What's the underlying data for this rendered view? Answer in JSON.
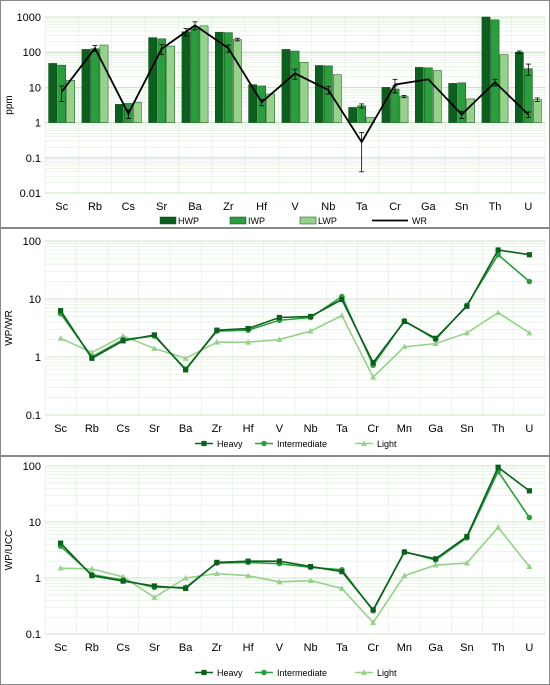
{
  "colors": {
    "dark": "#0d5f1e",
    "mid": "#2b9d3e",
    "light": "#96d28a",
    "lighter": "#d8efd2",
    "wr": "#000000",
    "grid": "#d7ecd3",
    "border": "#888888"
  },
  "chart_data": [
    {
      "type": "bar",
      "title": "",
      "xlabel": "",
      "ylabel": "ppm",
      "scale": "log",
      "ylim": [
        0.01,
        1000
      ],
      "yticks": [
        "0.01",
        "0.1",
        "1",
        "10",
        "100",
        "1000"
      ],
      "grid": true,
      "legend_position": "bottom",
      "categories": [
        "Sc",
        "Rb",
        "Cs",
        "Sr",
        "Ba",
        "Zr",
        "Hf",
        "V",
        "Nb",
        "Ta",
        "Cr",
        "Ga",
        "Sn",
        "Th",
        "U"
      ],
      "series": [
        {
          "name": "HWP",
          "kind": "bar",
          "color": "dark",
          "values": [
            48,
            120,
            3.3,
            260,
            380,
            370,
            12,
            120,
            42,
            2.7,
            10,
            37,
            13,
            1000,
            100
          ],
          "errors": [
            0,
            0,
            0,
            0,
            90,
            0,
            0,
            0,
            0,
            0,
            0,
            0,
            0,
            0,
            8
          ]
        },
        {
          "name": "IWP",
          "kind": "bar",
          "color": "mid",
          "values": [
            43,
            125,
            3.5,
            240,
            520,
            360,
            11,
            108,
            41,
            3.0,
            9,
            36,
            13.5,
            830,
            34
          ],
          "errors": [
            0,
            0,
            0,
            0,
            0,
            0,
            0,
            0,
            0,
            0.4,
            2,
            0,
            0,
            0,
            12
          ]
        },
        {
          "name": "LWP",
          "kind": "bar",
          "color": "light",
          "values": [
            16,
            160,
            3.8,
            150,
            560,
            230,
            6.5,
            52,
            23,
            1.4,
            5.5,
            30,
            4.7,
            85,
            4.5
          ],
          "errors": [
            0,
            0,
            0,
            0,
            0,
            20,
            0,
            0,
            0,
            0,
            0.4,
            0,
            0,
            0,
            0.5
          ]
        },
        {
          "name": "WR",
          "kind": "line",
          "color": "wr",
          "values": [
            7.5,
            130,
            1.8,
            125,
            580,
            130,
            3.8,
            25,
            8.5,
            0.28,
            12,
            17,
            1.7,
            14,
            1.7
          ],
          "errors": [
            3.5,
            25,
            0.5,
            40,
            150,
            30,
            0.8,
            8,
            2,
            0.24,
            5,
            0,
            0.4,
            3,
            0.3
          ]
        }
      ]
    },
    {
      "type": "line",
      "title": "",
      "xlabel": "",
      "ylabel": "WP/WR",
      "scale": "log",
      "ylim": [
        0.1,
        100
      ],
      "yticks": [
        "0.1",
        "1",
        "10",
        "100"
      ],
      "grid": true,
      "legend_position": "bottom",
      "categories": [
        "Sc",
        "Rb",
        "Cs",
        "Sr",
        "Ba",
        "Zr",
        "Hf",
        "V",
        "Nb",
        "Ta",
        "Cr",
        "Mn",
        "Ga",
        "Sn",
        "Th",
        "U"
      ],
      "series": [
        {
          "name": "Heavy",
          "marker": "square",
          "color": "dark",
          "values": [
            6.3,
            0.95,
            1.9,
            2.4,
            0.6,
            2.9,
            3.1,
            4.8,
            5.0,
            9.8,
            0.8,
            4.1,
            2.1,
            7.5,
            70,
            58
          ]
        },
        {
          "name": "Intermediate",
          "marker": "circle",
          "color": "mid",
          "values": [
            5.6,
            1.0,
            2.0,
            2.3,
            0.62,
            2.8,
            2.9,
            4.3,
            4.8,
            11,
            0.72,
            4.2,
            2.0,
            7.8,
            58,
            20
          ]
        },
        {
          "name": "Light",
          "marker": "triangle",
          "color": "light",
          "values": [
            2.1,
            1.2,
            2.3,
            1.4,
            0.95,
            1.8,
            1.8,
            2.0,
            2.8,
            5.2,
            0.45,
            1.5,
            1.7,
            2.6,
            5.8,
            2.6
          ]
        }
      ]
    },
    {
      "type": "line",
      "title": "",
      "xlabel": "",
      "ylabel": "WP/UCC",
      "scale": "log",
      "ylim": [
        0.1,
        100
      ],
      "yticks": [
        "0.1",
        "1",
        "10",
        "100"
      ],
      "grid": true,
      "legend_position": "bottom",
      "categories": [
        "Sc",
        "Rb",
        "Cs",
        "Sr",
        "Ba",
        "Zr",
        "Hf",
        "V",
        "Nb",
        "Ta",
        "Cr",
        "Mn",
        "Ga",
        "Sn",
        "Th",
        "U"
      ],
      "series": [
        {
          "name": "Heavy",
          "marker": "square",
          "color": "dark",
          "values": [
            4.2,
            1.1,
            0.88,
            0.72,
            0.65,
            1.9,
            2.0,
            2.0,
            1.6,
            1.3,
            0.27,
            2.9,
            2.2,
            5.5,
            95,
            36
          ]
        },
        {
          "name": "Intermediate",
          "marker": "circle",
          "color": "mid",
          "values": [
            3.7,
            1.15,
            0.92,
            0.68,
            0.68,
            1.85,
            1.9,
            1.8,
            1.55,
            1.4,
            0.26,
            2.95,
            2.1,
            5.2,
            80,
            12
          ]
        },
        {
          "name": "Light",
          "marker": "triangle",
          "color": "light",
          "values": [
            1.5,
            1.45,
            1.05,
            0.45,
            1.0,
            1.2,
            1.1,
            0.85,
            0.9,
            0.65,
            0.16,
            1.1,
            1.7,
            1.85,
            8,
            1.6
          ]
        }
      ]
    }
  ]
}
